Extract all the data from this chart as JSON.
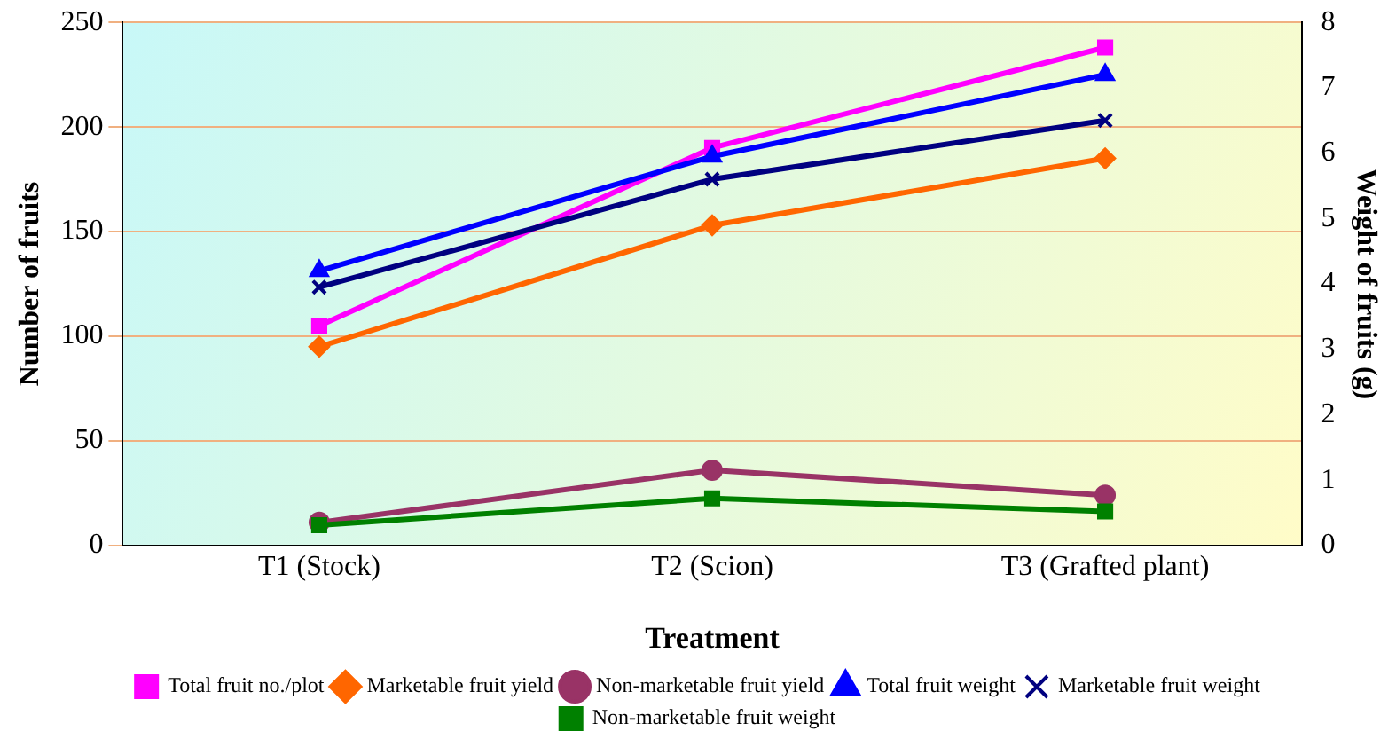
{
  "chart_data": {
    "type": "line",
    "xlabel": "Treatment",
    "ylabel": "Number of fruits",
    "y2label": "Weight of fruits (g)",
    "categories": [
      "T1 (Stock)",
      "T2 (Scion)",
      "T3 (Grafted plant)"
    ],
    "ylim": [
      0,
      250
    ],
    "yticks": [
      0,
      50,
      100,
      150,
      200,
      250
    ],
    "y2lim": [
      0,
      8
    ],
    "y2ticks": [
      0,
      1,
      2,
      3,
      4,
      5,
      6,
      7,
      8
    ],
    "grid": "y",
    "legend": "bottom",
    "series": [
      {
        "name": "Total fruit no./plot",
        "color": "#ff00ff",
        "marker": "square",
        "values": [
          105,
          190,
          238
        ]
      },
      {
        "name": "Marketable fruit yield",
        "color": "#ff6600",
        "marker": "diamond",
        "values": [
          95,
          153,
          185
        ]
      },
      {
        "name": "Non-marketable fruit yield",
        "color": "#993366",
        "marker": "circle",
        "values": [
          11,
          36,
          24
        ]
      },
      {
        "name": "Total fruit weight",
        "color": "#0000ff",
        "marker": "triangle",
        "axis": "y2",
        "values": [
          4.2,
          5.95,
          7.2
        ]
      },
      {
        "name": "Marketable fruit weight",
        "color": "#000080",
        "marker": "cross",
        "axis": "y2",
        "values": [
          3.95,
          5.6,
          6.5
        ]
      },
      {
        "name": "Non-marketable fruit weight",
        "color": "#008000",
        "marker": "square",
        "axis": "y2",
        "values": [
          0.31,
          0.72,
          0.52
        ]
      }
    ]
  }
}
